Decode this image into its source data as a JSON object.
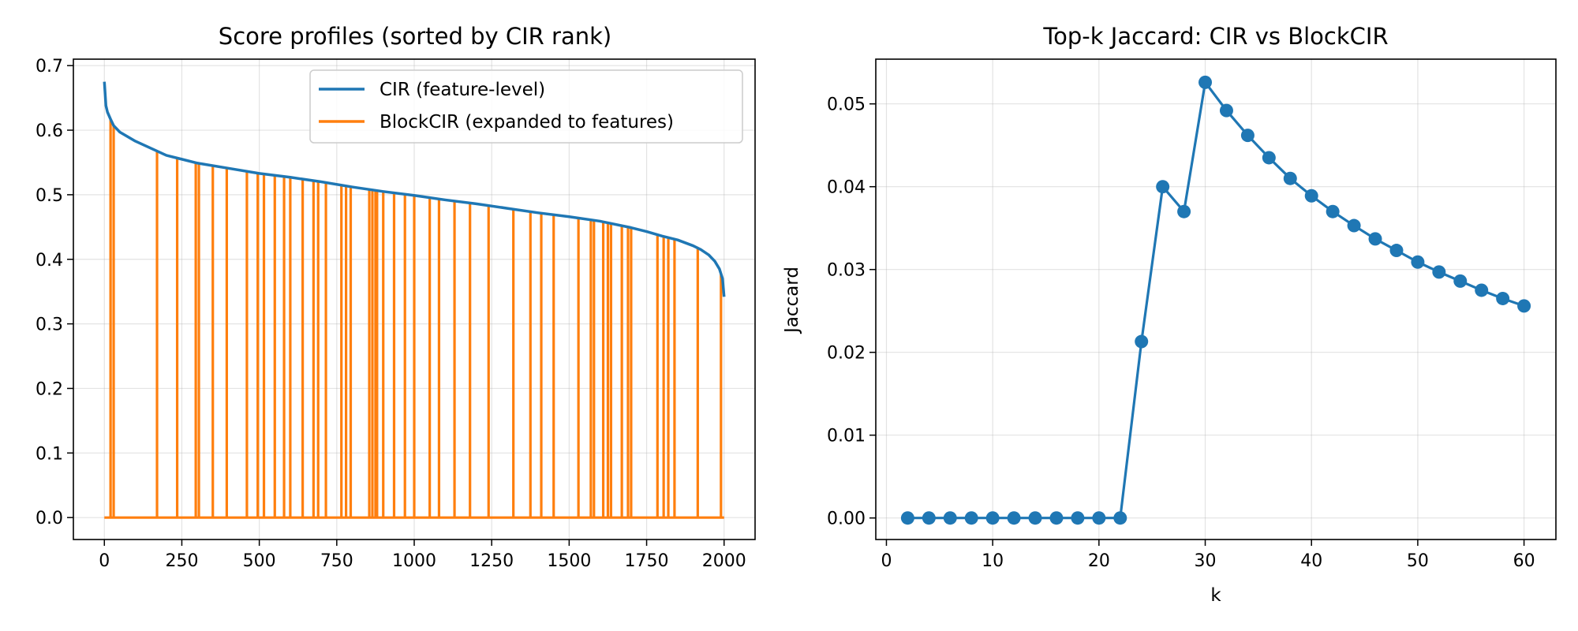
{
  "chart_data": [
    {
      "type": "line",
      "title": "Score profiles (sorted by CIR rank)",
      "xlabel": "",
      "ylabel": "",
      "xlim": [
        -100,
        2100
      ],
      "ylim": [
        -0.034,
        0.71
      ],
      "xticks": [
        0,
        250,
        500,
        750,
        1000,
        1250,
        1500,
        1750,
        2000
      ],
      "xtick_labels": [
        "0",
        "250",
        "500",
        "750",
        "1000",
        "1250",
        "1500",
        "1750",
        "2000"
      ],
      "yticks": [
        0.0,
        0.1,
        0.2,
        0.3,
        0.4,
        0.5,
        0.6,
        0.7
      ],
      "ytick_labels": [
        "0.0",
        "0.1",
        "0.2",
        "0.3",
        "0.4",
        "0.5",
        "0.6",
        "0.7"
      ],
      "grid": true,
      "legend_position": "top-right",
      "series": [
        {
          "name": "CIR (feature-level)",
          "color": "#1f77b4",
          "x": [
            0,
            5,
            10,
            20,
            30,
            50,
            100,
            150,
            200,
            250,
            300,
            400,
            500,
            600,
            700,
            800,
            900,
            1000,
            1100,
            1200,
            1300,
            1400,
            1500,
            1600,
            1700,
            1750,
            1800,
            1850,
            1900,
            1925,
            1950,
            1970,
            1985,
            1995,
            2000
          ],
          "y": [
            0.675,
            0.638,
            0.628,
            0.617,
            0.607,
            0.597,
            0.583,
            0.572,
            0.561,
            0.555,
            0.549,
            0.541,
            0.533,
            0.527,
            0.52,
            0.512,
            0.505,
            0.499,
            0.492,
            0.486,
            0.479,
            0.472,
            0.466,
            0.459,
            0.449,
            0.443,
            0.436,
            0.43,
            0.421,
            0.415,
            0.407,
            0.397,
            0.385,
            0.37,
            0.342
          ]
        },
        {
          "name": "BlockCIR (expanded to features)",
          "color": "#ff7f0e",
          "style": "spikes",
          "x_start": 0,
          "x_end": 2000,
          "spike_x": [
            20,
            30,
            170,
            235,
            295,
            305,
            350,
            395,
            460,
            495,
            515,
            550,
            580,
            600,
            640,
            675,
            690,
            715,
            765,
            780,
            795,
            855,
            865,
            875,
            880,
            900,
            935,
            970,
            1000,
            1050,
            1080,
            1130,
            1180,
            1240,
            1320,
            1375,
            1410,
            1450,
            1530,
            1570,
            1580,
            1610,
            1625,
            1635,
            1670,
            1690,
            1700,
            1785,
            1805,
            1820,
            1840,
            1915,
            1990
          ]
        }
      ]
    },
    {
      "type": "line",
      "title": "Top-k Jaccard: CIR vs BlockCIR",
      "xlabel": "k",
      "ylabel": "Jaccard",
      "xlim": [
        -1,
        63
      ],
      "ylim": [
        -0.0026,
        0.0554
      ],
      "xticks": [
        0,
        10,
        20,
        30,
        40,
        50,
        60
      ],
      "xtick_labels": [
        "0",
        "10",
        "20",
        "30",
        "40",
        "50",
        "60"
      ],
      "yticks": [
        0.0,
        0.01,
        0.02,
        0.03,
        0.04,
        0.05
      ],
      "ytick_labels": [
        "0.00",
        "0.01",
        "0.02",
        "0.03",
        "0.04",
        "0.05"
      ],
      "grid": true,
      "series": [
        {
          "color": "#1f77b4",
          "x": [
            2,
            4,
            6,
            8,
            10,
            12,
            14,
            16,
            18,
            20,
            22,
            24,
            26,
            28,
            30,
            32,
            34,
            36,
            38,
            40,
            42,
            44,
            46,
            48,
            50,
            52,
            54,
            56,
            58,
            60
          ],
          "y": [
            0.0,
            0.0,
            0.0,
            0.0,
            0.0,
            0.0,
            0.0,
            0.0,
            0.0,
            0.0,
            0.0,
            0.0213,
            0.04,
            0.037,
            0.0526,
            0.0492,
            0.0462,
            0.0435,
            0.041,
            0.0389,
            0.037,
            0.0353,
            0.0337,
            0.0323,
            0.0309,
            0.0297,
            0.0286,
            0.0275,
            0.0265,
            0.0256
          ]
        }
      ]
    }
  ]
}
